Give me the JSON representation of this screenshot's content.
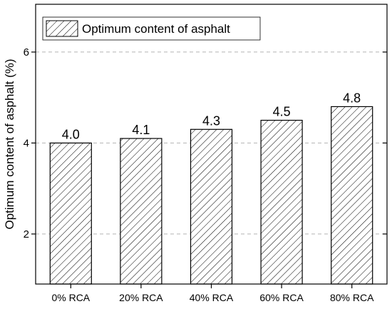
{
  "chart_data": {
    "type": "bar",
    "title": "",
    "xlabel": "",
    "ylabel": "Optimum content of asphalt (%)",
    "categories": [
      "0% RCA",
      "20% RCA",
      "40% RCA",
      "60% RCA",
      "80% RCA"
    ],
    "series": [
      {
        "name": "Optimum content of asphalt",
        "values": [
          4.0,
          4.1,
          4.3,
          4.5,
          4.8
        ],
        "data_labels": [
          "4.0",
          "4.1",
          "4.3",
          "4.5",
          "4.8"
        ]
      }
    ],
    "ylim": [
      0.9,
      7.05
    ],
    "yticks": [
      2,
      4,
      6
    ],
    "ytick_labels": [
      "2",
      "4",
      "6"
    ],
    "grid": "horizontal dashed",
    "legend_position": "top-left",
    "bar_fill": "diagonal hatch",
    "colors": {
      "bar_stroke": "#000000",
      "hatch": "#000000",
      "grid": "#b4b4b4",
      "axis": "#000000",
      "background": "#ffffff"
    }
  }
}
